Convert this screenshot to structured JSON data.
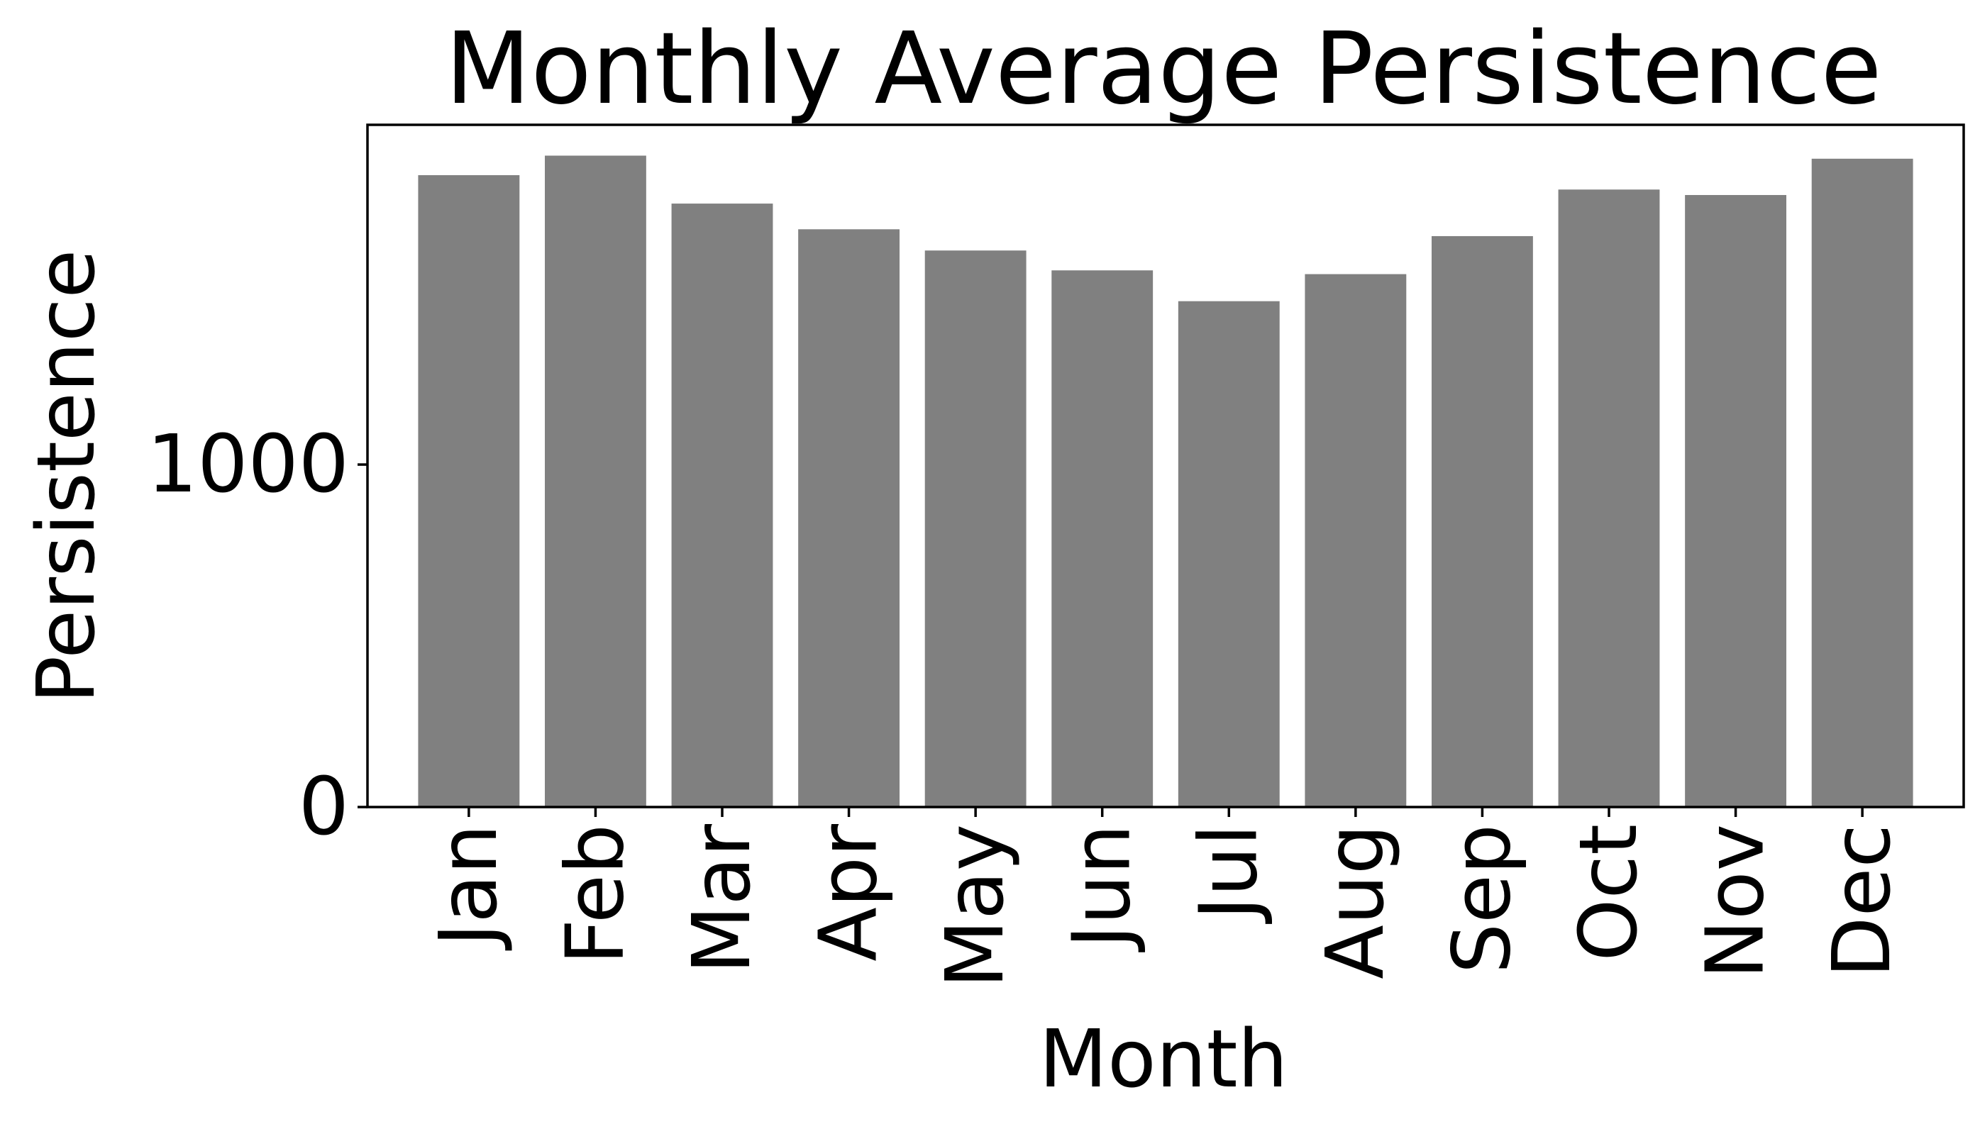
{
  "chart_data": {
    "type": "bar",
    "title": "Monthly Average Persistence",
    "xlabel": "Month",
    "ylabel": "Persistence",
    "categories": [
      "Jan",
      "Feb",
      "Mar",
      "Apr",
      "May",
      "Jun",
      "Jul",
      "Aug",
      "Sep",
      "Oct",
      "Nov",
      "Dec"
    ],
    "values": [
      1845,
      1902,
      1762,
      1687,
      1625,
      1567,
      1477,
      1556,
      1667,
      1803,
      1787,
      1893
    ],
    "ylim": [
      0,
      1992
    ],
    "yticks": [
      0,
      1000
    ],
    "bar_color": "#808080",
    "grid": false,
    "legend": "none"
  }
}
